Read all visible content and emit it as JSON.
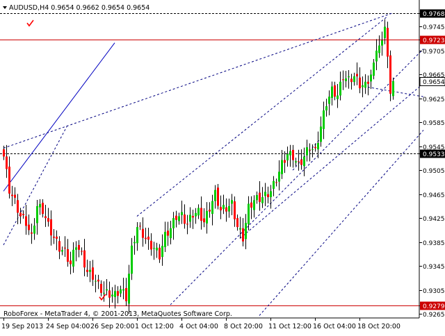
{
  "header": {
    "symbol_line": "AUDUSD,H4  0.9654 0.9662 0.9654 0.9654"
  },
  "footer": {
    "copyright": "RoboForex - MetaTrader 4, © 2001-2013, MetaQuotes Software Corp."
  },
  "colors": {
    "background": "#ffffff",
    "axis": "#000000",
    "bull_candle": "#00cc00",
    "bear_candle": "#ff0000",
    "level_line": "#cc0000",
    "trend_dashed": "#000080",
    "trend_solid": "#0000c0",
    "check_mark": "#ff0000",
    "price_tag_text": "#ffffff"
  },
  "chart_data": {
    "type": "candlestick",
    "symbol": "AUDUSD",
    "timeframe": "H4",
    "ylim": [
      0.9265,
      0.9785
    ],
    "yticks": [
      0.9768,
      0.9745,
      0.9723,
      0.9705,
      0.9665,
      0.9654,
      0.9625,
      0.9585,
      0.9545,
      0.9533,
      0.9505,
      0.9465,
      0.9425,
      0.9385,
      0.9345,
      0.9305,
      0.9279,
      0.9265
    ],
    "ytick_labels": [
      "0.9768",
      "0.9745",
      "0.9723",
      "0.9705",
      "0.9665",
      "0.9654",
      "0.9625",
      "0.9585",
      "0.9545",
      "0.9533",
      "0.9505",
      "0.9465",
      "0.9425",
      "0.9385",
      "0.9345",
      "0.9305",
      "0.9279",
      "0.9265"
    ],
    "highlighted_levels": [
      {
        "label": "0.9768",
        "value": 0.9768,
        "style": "dashed-black"
      },
      {
        "label": "0.9723",
        "value": 0.9723,
        "style": "solid-red"
      },
      {
        "label": "0.9654",
        "value": 0.9654,
        "style": "current-price"
      },
      {
        "label": "0.9533",
        "value": 0.9533,
        "style": "dashed-black"
      },
      {
        "label": "0.9279",
        "value": 0.9279,
        "style": "solid-red"
      }
    ],
    "xticks": [
      {
        "label": "19 Sep 2013",
        "index": 0
      },
      {
        "label": "24 Sep 04:00",
        "index": 16
      },
      {
        "label": "26 Sep 20:00",
        "index": 32
      },
      {
        "label": "1 Oct 12:00",
        "index": 48
      },
      {
        "label": "4 Oct 04:00",
        "index": 64
      },
      {
        "label": "8 Oct 20:00",
        "index": 80
      },
      {
        "label": "11 Oct 12:00",
        "index": 96
      },
      {
        "label": "16 Oct 04:00",
        "index": 112
      },
      {
        "label": "18 Oct 20:00",
        "index": 128
      }
    ],
    "close_anchors": [
      [
        0,
        0.9528
      ],
      [
        2,
        0.9472
      ],
      [
        4,
        0.9452
      ],
      [
        6,
        0.9428
      ],
      [
        8,
        0.9418
      ],
      [
        10,
        0.9392
      ],
      [
        12,
        0.9445
      ],
      [
        14,
        0.9438
      ],
      [
        16,
        0.9412
      ],
      [
        18,
        0.9392
      ],
      [
        20,
        0.9375
      ],
      [
        22,
        0.9368
      ],
      [
        24,
        0.9348
      ],
      [
        26,
        0.9382
      ],
      [
        28,
        0.9362
      ],
      [
        30,
        0.9335
      ],
      [
        32,
        0.9328
      ],
      [
        34,
        0.9312
      ],
      [
        36,
        0.93
      ],
      [
        38,
        0.9298
      ],
      [
        40,
        0.9296
      ],
      [
        42,
        0.9306
      ],
      [
        44,
        0.9292
      ],
      [
        46,
        0.9372
      ],
      [
        48,
        0.941
      ],
      [
        50,
        0.9398
      ],
      [
        52,
        0.9382
      ],
      [
        54,
        0.9375
      ],
      [
        56,
        0.9362
      ],
      [
        58,
        0.9395
      ],
      [
        60,
        0.9408
      ],
      [
        62,
        0.9428
      ],
      [
        64,
        0.9428
      ],
      [
        66,
        0.9415
      ],
      [
        68,
        0.9432
      ],
      [
        70,
        0.9435
      ],
      [
        72,
        0.9418
      ],
      [
        74,
        0.9442
      ],
      [
        76,
        0.9465
      ],
      [
        78,
        0.9438
      ],
      [
        80,
        0.9442
      ],
      [
        82,
        0.9448
      ],
      [
        84,
        0.941
      ],
      [
        86,
        0.9392
      ],
      [
        88,
        0.9442
      ],
      [
        90,
        0.9455
      ],
      [
        92,
        0.9458
      ],
      [
        94,
        0.9462
      ],
      [
        96,
        0.947
      ],
      [
        98,
        0.949
      ],
      [
        100,
        0.9515
      ],
      [
        102,
        0.9532
      ],
      [
        104,
        0.9528
      ],
      [
        106,
        0.9512
      ],
      [
        108,
        0.9528
      ],
      [
        110,
        0.9545
      ],
      [
        112,
        0.9535
      ],
      [
        114,
        0.9578
      ],
      [
        116,
        0.9618
      ],
      [
        118,
        0.9638
      ],
      [
        120,
        0.963
      ],
      [
        122,
        0.9662
      ],
      [
        124,
        0.9655
      ],
      [
        126,
        0.9662
      ],
      [
        128,
        0.9648
      ],
      [
        130,
        0.9646
      ],
      [
        132,
        0.9665
      ],
      [
        134,
        0.9705
      ],
      [
        136,
        0.9722
      ],
      [
        137,
        0.9745
      ],
      [
        138,
        0.9695
      ],
      [
        139,
        0.9633
      ],
      [
        140,
        0.9654
      ]
    ],
    "candle_count": 141,
    "trend_lines": [
      {
        "style": "solid",
        "p1": [
          0,
          0.947
        ],
        "p2": [
          40,
          0.9718
        ]
      },
      {
        "style": "dashed",
        "p1": [
          0,
          0.9542
        ],
        "p2": [
          140,
          0.9768
        ]
      },
      {
        "style": "dashed",
        "p1": [
          0,
          0.938
        ],
        "p2": [
          23,
          0.958
        ]
      },
      {
        "style": "dashed",
        "p1": [
          48,
          0.9428
        ],
        "p2": [
          138,
          0.9762
        ]
      },
      {
        "style": "dashed",
        "p1": [
          60,
          0.928
        ],
        "p2": [
          151,
          0.9708
        ]
      },
      {
        "style": "dashed",
        "p1": [
          85,
          0.9391
        ],
        "p2": [
          151,
          0.965
        ]
      },
      {
        "style": "dashed",
        "p1": [
          92,
          0.9262
        ],
        "p2": [
          151,
          0.9572
        ]
      },
      {
        "style": "dashed",
        "p1": [
          131,
          0.9644
        ],
        "p2": [
          151,
          0.9628
        ]
      },
      {
        "style": "dashed",
        "p1": [
          104,
          0.9505
        ],
        "p2": [
          114,
          0.9558
        ]
      }
    ],
    "markers": [
      {
        "name": "check-mark",
        "at": [
          2,
          0.975
        ]
      },
      {
        "name": "check-mark",
        "at": [
          28,
          0.9292
        ]
      }
    ]
  }
}
